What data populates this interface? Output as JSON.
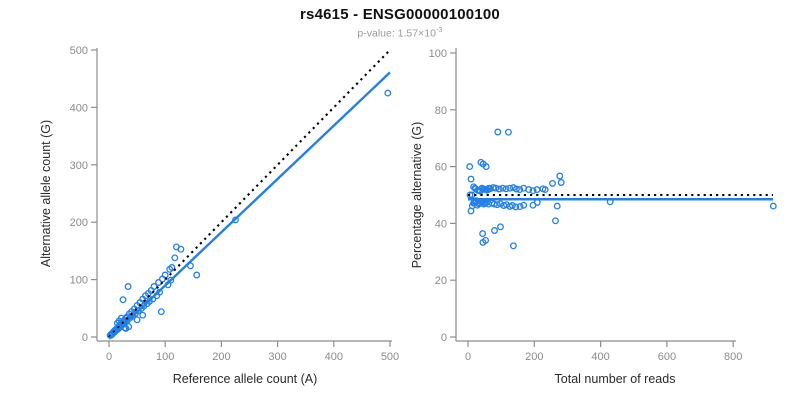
{
  "header": {
    "title": "rs4615 - ENSG00000100100",
    "subtitle_base": "p-value: 1.57×10",
    "subtitle_exponent": "-3"
  },
  "colors": {
    "background": "#FFFFFF",
    "points": "#2380E8",
    "regression": "#2380E8",
    "identity": "#000000",
    "axis": "#8E8E8E",
    "tick_text": "#8C8C8C",
    "axis_title": "#2B2B2B",
    "title": "#111111",
    "subtitle": "#9A9A9A"
  },
  "chart_data": [
    {
      "type": "scatter",
      "name": "allele-counts",
      "xlabel": "Reference allele count (A)",
      "ylabel": "Alternative allele count (G)",
      "xlim": [
        0,
        500
      ],
      "ylim": [
        0,
        500
      ],
      "xticks": [
        0,
        100,
        200,
        300,
        400,
        500
      ],
      "yticks": [
        0,
        100,
        200,
        300,
        400,
        500
      ],
      "grid": false,
      "legend": "none",
      "marker": "open-circle",
      "points": [
        [
          2,
          3
        ],
        [
          3,
          3
        ],
        [
          4,
          5
        ],
        [
          5,
          4
        ],
        [
          6,
          6
        ],
        [
          7,
          6
        ],
        [
          8,
          9
        ],
        [
          9,
          8
        ],
        [
          10,
          11
        ],
        [
          10,
          9
        ],
        [
          11,
          12
        ],
        [
          12,
          11
        ],
        [
          13,
          12
        ],
        [
          14,
          15
        ],
        [
          15,
          13
        ],
        [
          15,
          24
        ],
        [
          16,
          17
        ],
        [
          17,
          15
        ],
        [
          18,
          19
        ],
        [
          18,
          28
        ],
        [
          19,
          17
        ],
        [
          20,
          22
        ],
        [
          21,
          19
        ],
        [
          22,
          24
        ],
        [
          22,
          33
        ],
        [
          23,
          21
        ],
        [
          24,
          26
        ],
        [
          25,
          22
        ],
        [
          26,
          28
        ],
        [
          27,
          24
        ],
        [
          28,
          16
        ],
        [
          28,
          30
        ],
        [
          29,
          26
        ],
        [
          30,
          15
        ],
        [
          30,
          33
        ],
        [
          32,
          35
        ],
        [
          33,
          29
        ],
        [
          35,
          18
        ],
        [
          36,
          40
        ],
        [
          38,
          34
        ],
        [
          40,
          44
        ],
        [
          42,
          37
        ],
        [
          45,
          49
        ],
        [
          47,
          41
        ],
        [
          25,
          65
        ],
        [
          34,
          88
        ],
        [
          50,
          30
        ],
        [
          50,
          55
        ],
        [
          52,
          46
        ],
        [
          55,
          60
        ],
        [
          58,
          50
        ],
        [
          60,
          38
        ],
        [
          60,
          66
        ],
        [
          62,
          54
        ],
        [
          65,
          72
        ],
        [
          68,
          58
        ],
        [
          70,
          76
        ],
        [
          72,
          62
        ],
        [
          75,
          81
        ],
        [
          78,
          66
        ],
        [
          80,
          88
        ],
        [
          85,
          72
        ],
        [
          88,
          95
        ],
        [
          90,
          78
        ],
        [
          93,
          44
        ],
        [
          95,
          101
        ],
        [
          100,
          108
        ],
        [
          105,
          91
        ],
        [
          108,
          118
        ],
        [
          110,
          99
        ],
        [
          112,
          121
        ],
        [
          117,
          138
        ],
        [
          120,
          157
        ],
        [
          128,
          153
        ],
        [
          145,
          124
        ],
        [
          156,
          108
        ],
        [
          225,
          204
        ],
        [
          496,
          425
        ]
      ],
      "lines": [
        {
          "name": "identity-line",
          "style": "dotted",
          "color": "#000000",
          "from": [
            0,
            0
          ],
          "to": [
            500,
            500
          ]
        },
        {
          "name": "regression-line",
          "style": "solid",
          "color": "#2380E8",
          "from": [
            0,
            -3
          ],
          "to": [
            500,
            461
          ]
        }
      ]
    },
    {
      "type": "scatter",
      "name": "percentage-vs-reads",
      "xlabel": "Total number of reads",
      "ylabel": "Percentage alternative (G)",
      "xlim": [
        0,
        920
      ],
      "ylim": [
        0,
        100
      ],
      "xticks": [
        0,
        200,
        400,
        600,
        800
      ],
      "yticks": [
        0,
        20,
        40,
        60,
        80,
        100
      ],
      "grid": false,
      "legend": "none",
      "marker": "open-circle",
      "points": [
        [
          5,
          60.0
        ],
        [
          6,
          50.0
        ],
        [
          9,
          55.6
        ],
        [
          9,
          44.4
        ],
        [
          12,
          50.0
        ],
        [
          13,
          46.2
        ],
        [
          17,
          52.9
        ],
        [
          17,
          47.1
        ],
        [
          21,
          52.4
        ],
        [
          19,
          47.4
        ],
        [
          23,
          52.2
        ],
        [
          23,
          47.8
        ],
        [
          25,
          48.0
        ],
        [
          29,
          51.7
        ],
        [
          28,
          46.4
        ],
        [
          39,
          61.5
        ],
        [
          33,
          51.5
        ],
        [
          32,
          46.9
        ],
        [
          37,
          51.4
        ],
        [
          46,
          60.9
        ],
        [
          36,
          47.2
        ],
        [
          42,
          52.4
        ],
        [
          40,
          47.5
        ],
        [
          46,
          52.2
        ],
        [
          55,
          60.0
        ],
        [
          44,
          47.7
        ],
        [
          50,
          52.0
        ],
        [
          47,
          46.8
        ],
        [
          54,
          51.9
        ],
        [
          51,
          47.1
        ],
        [
          44,
          36.4
        ],
        [
          58,
          51.7
        ],
        [
          55,
          47.3
        ],
        [
          45,
          33.3
        ],
        [
          63,
          52.4
        ],
        [
          67,
          52.2
        ],
        [
          62,
          46.8
        ],
        [
          53,
          34.0
        ],
        [
          76,
          52.6
        ],
        [
          72,
          47.2
        ],
        [
          84,
          52.4
        ],
        [
          79,
          46.8
        ],
        [
          94,
          52.1
        ],
        [
          88,
          46.6
        ],
        [
          90,
          72.2
        ],
        [
          122,
          72.1
        ],
        [
          80,
          37.5
        ],
        [
          105,
          52.4
        ],
        [
          98,
          46.9
        ],
        [
          115,
          52.2
        ],
        [
          108,
          46.3
        ],
        [
          98,
          38.8
        ],
        [
          126,
          52.4
        ],
        [
          116,
          46.6
        ],
        [
          137,
          52.6
        ],
        [
          126,
          46.0
        ],
        [
          146,
          52.1
        ],
        [
          134,
          46.3
        ],
        [
          156,
          51.9
        ],
        [
          144,
          45.8
        ],
        [
          168,
          52.4
        ],
        [
          157,
          45.9
        ],
        [
          183,
          51.9
        ],
        [
          168,
          46.4
        ],
        [
          137,
          32.1
        ],
        [
          196,
          51.5
        ],
        [
          208,
          51.9
        ],
        [
          196,
          46.4
        ],
        [
          226,
          52.2
        ],
        [
          209,
          47.4
        ],
        [
          233,
          51.9
        ],
        [
          255,
          54.1
        ],
        [
          277,
          56.7
        ],
        [
          281,
          54.4
        ],
        [
          269,
          46.1
        ],
        [
          264,
          40.9
        ],
        [
          429,
          47.6
        ],
        [
          921,
          46.1
        ]
      ],
      "lines": [
        {
          "name": "expected-50pct-line",
          "style": "dotted",
          "color": "#000000",
          "from": [
            0,
            50
          ],
          "to": [
            920,
            50
          ]
        },
        {
          "name": "mean-percentage-line",
          "style": "solid",
          "color": "#2380E8",
          "from": [
            0,
            48.5
          ],
          "to": [
            920,
            48.5
          ]
        }
      ]
    }
  ]
}
